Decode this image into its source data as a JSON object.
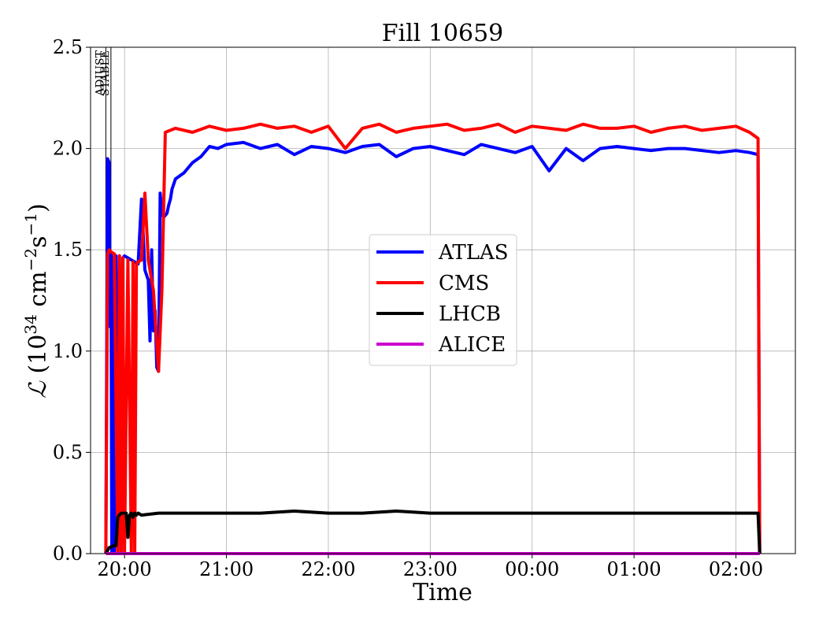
{
  "chart_data": {
    "type": "line",
    "title": "Fill 10659",
    "xlabel": "Time",
    "ylabel_symbol": "ℒ",
    "ylabel_open": " (10",
    "ylabel_exp1": "34",
    "ylabel_mid": " cm",
    "ylabel_exp2": "−2",
    "ylabel_s": "s",
    "ylabel_exp3": "−1",
    "ylabel_close": ")",
    "xlim": [
      -20,
      395
    ],
    "ylim": [
      0,
      2.5
    ],
    "x_ticks": [
      0,
      60,
      120,
      180,
      240,
      300,
      360
    ],
    "x_tick_labels": [
      "20:00",
      "21:00",
      "22:00",
      "23:00",
      "00:00",
      "01:00",
      "02:00"
    ],
    "y_ticks": [
      0,
      0.5,
      1.0,
      1.5,
      2.0,
      2.5
    ],
    "y_tick_labels": [
      "0.0",
      "0.5",
      "1.0",
      "1.5",
      "2.0",
      "2.5"
    ],
    "grid": true,
    "legend_position": "center-right",
    "markers": [
      {
        "label": "ADJUST",
        "x": -11
      },
      {
        "label": "STABLE",
        "x": -8
      }
    ],
    "series": [
      {
        "name": "ATLAS",
        "color": "#0000ff",
        "x": [
          -11,
          -10,
          -9,
          -8.5,
          -8,
          -7.5,
          -7,
          -6,
          -5,
          -4,
          -3,
          -2,
          -1,
          0,
          2,
          4,
          6,
          8,
          10,
          12,
          14,
          15,
          16,
          17,
          18,
          19,
          20,
          21,
          22,
          23,
          25,
          26,
          27,
          28,
          30,
          35,
          40,
          45,
          50,
          55,
          60,
          70,
          80,
          90,
          100,
          110,
          120,
          130,
          140,
          150,
          160,
          170,
          180,
          190,
          200,
          210,
          220,
          230,
          240,
          250,
          260,
          270,
          280,
          290,
          300,
          310,
          320,
          330,
          340,
          350,
          360,
          368,
          373,
          374
        ],
        "y": [
          0,
          1.95,
          1.93,
          1.12,
          1.48,
          0.0,
          1.48,
          0.0,
          1.47,
          0.0,
          1.47,
          0.0,
          1.46,
          1.47,
          1.46,
          1.45,
          1.44,
          1.43,
          1.75,
          1.4,
          1.35,
          1.05,
          1.5,
          1.1,
          1.2,
          0.92,
          0.9,
          1.78,
          1.68,
          1.66,
          1.68,
          1.72,
          1.75,
          1.8,
          1.85,
          1.88,
          1.93,
          1.96,
          2.01,
          2.0,
          2.02,
          2.03,
          2.0,
          2.02,
          1.97,
          2.01,
          2.0,
          1.98,
          2.01,
          2.02,
          1.96,
          2.0,
          2.01,
          1.99,
          1.97,
          2.02,
          2.0,
          1.98,
          2.01,
          1.89,
          2.0,
          1.94,
          2.0,
          2.01,
          2.0,
          1.99,
          2.0,
          2.0,
          1.99,
          1.98,
          1.99,
          1.98,
          1.97,
          0.0
        ]
      },
      {
        "name": "CMS",
        "color": "#ff0000",
        "x": [
          -11,
          -10,
          -9,
          -8,
          -6,
          -4,
          -3,
          -2,
          -1,
          0,
          2,
          4,
          5,
          6,
          7,
          8,
          10,
          12,
          14,
          17,
          20,
          22,
          24,
          30,
          40,
          50,
          60,
          70,
          80,
          90,
          100,
          110,
          120,
          130,
          140,
          150,
          160,
          170,
          180,
          190,
          200,
          210,
          220,
          230,
          240,
          250,
          260,
          270,
          280,
          290,
          300,
          310,
          320,
          330,
          340,
          350,
          360,
          368,
          373,
          374
        ],
        "y": [
          0,
          1.48,
          1.5,
          1.49,
          1.48,
          0.0,
          1.47,
          0.0,
          1.46,
          0.0,
          1.45,
          0.0,
          1.44,
          0.0,
          1.43,
          1.44,
          1.45,
          1.78,
          1.45,
          1.3,
          0.9,
          1.3,
          2.08,
          2.1,
          2.08,
          2.11,
          2.09,
          2.1,
          2.12,
          2.1,
          2.11,
          2.08,
          2.11,
          2.0,
          2.1,
          2.12,
          2.08,
          2.1,
          2.11,
          2.12,
          2.09,
          2.1,
          2.12,
          2.08,
          2.11,
          2.1,
          2.09,
          2.12,
          2.1,
          2.1,
          2.11,
          2.08,
          2.1,
          2.11,
          2.09,
          2.1,
          2.11,
          2.08,
          2.05,
          0.0
        ]
      },
      {
        "name": "LHCB",
        "color": "#000000",
        "x": [
          -11,
          -9,
          -6,
          -5,
          -4,
          -2,
          0,
          1,
          2,
          3,
          4,
          5,
          6,
          7,
          8,
          10,
          20,
          40,
          60,
          80,
          100,
          120,
          140,
          160,
          180,
          200,
          220,
          240,
          260,
          280,
          300,
          320,
          340,
          360,
          370,
          373,
          374
        ],
        "y": [
          0,
          0.03,
          0.04,
          0.04,
          0.18,
          0.2,
          0.2,
          0.2,
          0.08,
          0.19,
          0.2,
          0.18,
          0.2,
          0.19,
          0.2,
          0.19,
          0.2,
          0.2,
          0.2,
          0.2,
          0.21,
          0.2,
          0.2,
          0.21,
          0.2,
          0.2,
          0.2,
          0.2,
          0.2,
          0.2,
          0.2,
          0.2,
          0.2,
          0.2,
          0.2,
          0.2,
          0.0
        ]
      },
      {
        "name": "ALICE",
        "color": "#cc00cc",
        "x": [
          -11,
          374
        ],
        "y": [
          0,
          0
        ]
      }
    ]
  }
}
